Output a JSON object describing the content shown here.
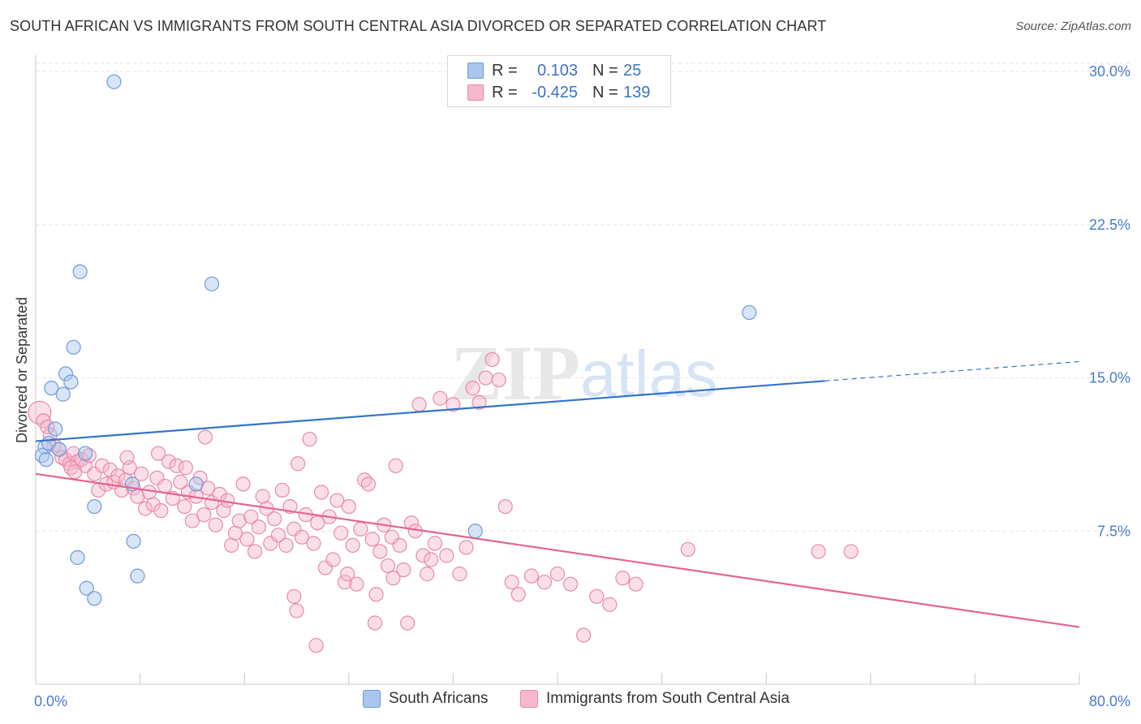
{
  "header": {
    "title": "SOUTH AFRICAN VS IMMIGRANTS FROM SOUTH CENTRAL ASIA DIVORCED OR SEPARATED CORRELATION CHART",
    "source": "Source: ZipAtlas.com"
  },
  "watermark": {
    "zip": "ZIP",
    "atlas": "atlas"
  },
  "legend_top": {
    "rows": [
      {
        "r_label": "R =",
        "r_value": "0.103",
        "n_label": "N =",
        "n_value": "25",
        "color": "#a9c6ee",
        "stroke": "#6f9bd8"
      },
      {
        "r_label": "R =",
        "r_value": "-0.425",
        "n_label": "N =",
        "n_value": "139",
        "color": "#f6b8cb",
        "stroke": "#e88aaa"
      }
    ]
  },
  "legend_bottom": {
    "items": [
      {
        "label": "South Africans",
        "color": "#a9c6ee",
        "stroke": "#6f9bd8"
      },
      {
        "label": "Immigrants from South Central Asia",
        "color": "#f6b8cb",
        "stroke": "#e88aaa"
      }
    ]
  },
  "chart_data": {
    "type": "scatter",
    "title": "SOUTH AFRICAN VS IMMIGRANTS FROM SOUTH CENTRAL ASIA DIVORCED OR SEPARATED CORRELATION CHART",
    "xlabel": "",
    "ylabel": "Divorced or Separated",
    "xlim": [
      0,
      80
    ],
    "ylim": [
      0,
      30.8
    ],
    "x_tick_labels": [
      "0.0%",
      "80.0%"
    ],
    "y_ticks": [
      7.5,
      15.0,
      22.5,
      30.0
    ],
    "y_tick_labels": [
      "7.5%",
      "15.0%",
      "22.5%",
      "30.0%"
    ],
    "grid": true,
    "legend_position": "top-center",
    "series": [
      {
        "name": "South Africans",
        "color": "#a9c6ee",
        "stroke": "#6f9bd8",
        "line_color": "#3474cc",
        "trend": {
          "x0": 0,
          "y0": 11.9,
          "x1": 60.5,
          "y1": 14.85,
          "dash_to_x": 80,
          "dash_to_y": 15.8
        },
        "points": [
          [
            6.0,
            29.5
          ],
          [
            3.4,
            20.2
          ],
          [
            13.5,
            19.6
          ],
          [
            54.7,
            18.2
          ],
          [
            2.9,
            16.5
          ],
          [
            2.3,
            15.2
          ],
          [
            1.2,
            14.5
          ],
          [
            2.7,
            14.8
          ],
          [
            2.1,
            14.2
          ],
          [
            1.5,
            12.5
          ],
          [
            0.7,
            11.6
          ],
          [
            0.5,
            11.2
          ],
          [
            1.0,
            11.8
          ],
          [
            3.8,
            11.3
          ],
          [
            0.8,
            11.0
          ],
          [
            7.4,
            9.8
          ],
          [
            4.5,
            8.7
          ],
          [
            12.3,
            9.8
          ],
          [
            7.5,
            7.0
          ],
          [
            3.2,
            6.2
          ],
          [
            7.8,
            5.3
          ],
          [
            3.9,
            4.7
          ],
          [
            4.5,
            4.2
          ],
          [
            33.7,
            7.5
          ],
          [
            1.8,
            11.5
          ]
        ]
      },
      {
        "name": "Immigrants from South Central Asia",
        "color": "#f6b8cb",
        "stroke": "#e88aaa",
        "line_color": "#e36490",
        "trend": {
          "x0": 0,
          "y0": 10.3,
          "x1": 80,
          "y1": 2.8
        },
        "points": [
          [
            0.3,
            13.3
          ],
          [
            0.6,
            12.9
          ],
          [
            0.9,
            12.6
          ],
          [
            1.1,
            12.2
          ],
          [
            1.4,
            11.7
          ],
          [
            1.8,
            11.5
          ],
          [
            2.0,
            11.1
          ],
          [
            2.3,
            11.0
          ],
          [
            2.6,
            10.8
          ],
          [
            2.9,
            11.3
          ],
          [
            3.2,
            10.9
          ],
          [
            3.5,
            11.0
          ],
          [
            3.8,
            10.7
          ],
          [
            4.1,
            11.2
          ],
          [
            2.7,
            10.6
          ],
          [
            3.0,
            10.4
          ],
          [
            4.5,
            10.3
          ],
          [
            4.8,
            9.5
          ],
          [
            5.1,
            10.7
          ],
          [
            5.4,
            9.8
          ],
          [
            5.7,
            10.5
          ],
          [
            6.0,
            9.9
          ],
          [
            6.3,
            10.2
          ],
          [
            6.6,
            9.5
          ],
          [
            6.9,
            10.0
          ],
          [
            7.2,
            10.6
          ],
          [
            7.5,
            9.6
          ],
          [
            7.8,
            9.2
          ],
          [
            8.1,
            10.3
          ],
          [
            8.4,
            8.6
          ],
          [
            8.7,
            9.4
          ],
          [
            9.0,
            8.8
          ],
          [
            9.3,
            10.1
          ],
          [
            9.6,
            8.5
          ],
          [
            9.9,
            9.7
          ],
          [
            10.2,
            10.9
          ],
          [
            10.5,
            9.1
          ],
          [
            10.8,
            10.7
          ],
          [
            11.1,
            9.9
          ],
          [
            11.4,
            8.7
          ],
          [
            11.7,
            9.4
          ],
          [
            12.0,
            8.0
          ],
          [
            12.3,
            9.2
          ],
          [
            12.6,
            10.1
          ],
          [
            12.9,
            8.3
          ],
          [
            13.2,
            9.6
          ],
          [
            13.5,
            8.9
          ],
          [
            13.8,
            7.8
          ],
          [
            14.1,
            9.3
          ],
          [
            14.4,
            8.5
          ],
          [
            14.7,
            9.0
          ],
          [
            15.0,
            6.8
          ],
          [
            15.3,
            7.4
          ],
          [
            15.6,
            8.0
          ],
          [
            15.9,
            9.8
          ],
          [
            16.2,
            7.1
          ],
          [
            16.5,
            8.2
          ],
          [
            16.8,
            6.5
          ],
          [
            17.1,
            7.7
          ],
          [
            17.4,
            9.2
          ],
          [
            17.7,
            8.6
          ],
          [
            18.0,
            6.9
          ],
          [
            18.3,
            8.1
          ],
          [
            18.6,
            7.3
          ],
          [
            18.9,
            9.5
          ],
          [
            19.2,
            6.8
          ],
          [
            19.5,
            8.7
          ],
          [
            19.8,
            7.6
          ],
          [
            20.1,
            10.8
          ],
          [
            20.4,
            7.2
          ],
          [
            20.7,
            8.3
          ],
          [
            21.0,
            12.0
          ],
          [
            21.3,
            6.9
          ],
          [
            21.6,
            7.9
          ],
          [
            21.9,
            9.4
          ],
          [
            22.2,
            5.7
          ],
          [
            22.5,
            8.2
          ],
          [
            22.8,
            6.1
          ],
          [
            23.1,
            9.0
          ],
          [
            23.4,
            7.4
          ],
          [
            23.7,
            5.0
          ],
          [
            24.0,
            8.7
          ],
          [
            24.3,
            6.8
          ],
          [
            24.6,
            4.9
          ],
          [
            24.9,
            7.6
          ],
          [
            25.2,
            10.0
          ],
          [
            25.5,
            9.8
          ],
          [
            25.8,
            7.1
          ],
          [
            26.1,
            4.4
          ],
          [
            26.4,
            6.5
          ],
          [
            26.7,
            7.8
          ],
          [
            27.0,
            5.8
          ],
          [
            27.3,
            7.2
          ],
          [
            27.6,
            10.7
          ],
          [
            27.9,
            6.8
          ],
          [
            28.2,
            5.6
          ],
          [
            28.5,
            3.0
          ],
          [
            28.8,
            7.9
          ],
          [
            29.1,
            7.5
          ],
          [
            29.4,
            13.7
          ],
          [
            29.7,
            6.3
          ],
          [
            30.0,
            5.4
          ],
          [
            30.3,
            6.1
          ],
          [
            30.6,
            6.9
          ],
          [
            31.0,
            14.0
          ],
          [
            31.5,
            6.3
          ],
          [
            32.0,
            13.7
          ],
          [
            32.5,
            5.4
          ],
          [
            33.0,
            6.7
          ],
          [
            33.5,
            14.5
          ],
          [
            34.0,
            13.8
          ],
          [
            34.5,
            15.0
          ],
          [
            35.0,
            15.9
          ],
          [
            35.5,
            14.9
          ],
          [
            36.0,
            8.7
          ],
          [
            36.5,
            5.0
          ],
          [
            37.0,
            4.4
          ],
          [
            38.0,
            5.3
          ],
          [
            39.0,
            5.0
          ],
          [
            40.0,
            5.4
          ],
          [
            41.0,
            4.9
          ],
          [
            42.0,
            2.4
          ],
          [
            43.0,
            4.3
          ],
          [
            44.0,
            3.9
          ],
          [
            45.0,
            5.2
          ],
          [
            46.0,
            4.9
          ],
          [
            50.0,
            6.6
          ],
          [
            60.0,
            6.5
          ],
          [
            20.0,
            3.6
          ],
          [
            21.5,
            1.9
          ],
          [
            19.8,
            4.3
          ],
          [
            23.9,
            5.4
          ],
          [
            27.4,
            5.2
          ],
          [
            26.0,
            3.0
          ],
          [
            62.5,
            6.5
          ],
          [
            13.0,
            12.1
          ],
          [
            11.5,
            10.6
          ],
          [
            9.4,
            11.3
          ],
          [
            7.0,
            11.1
          ]
        ]
      }
    ]
  }
}
